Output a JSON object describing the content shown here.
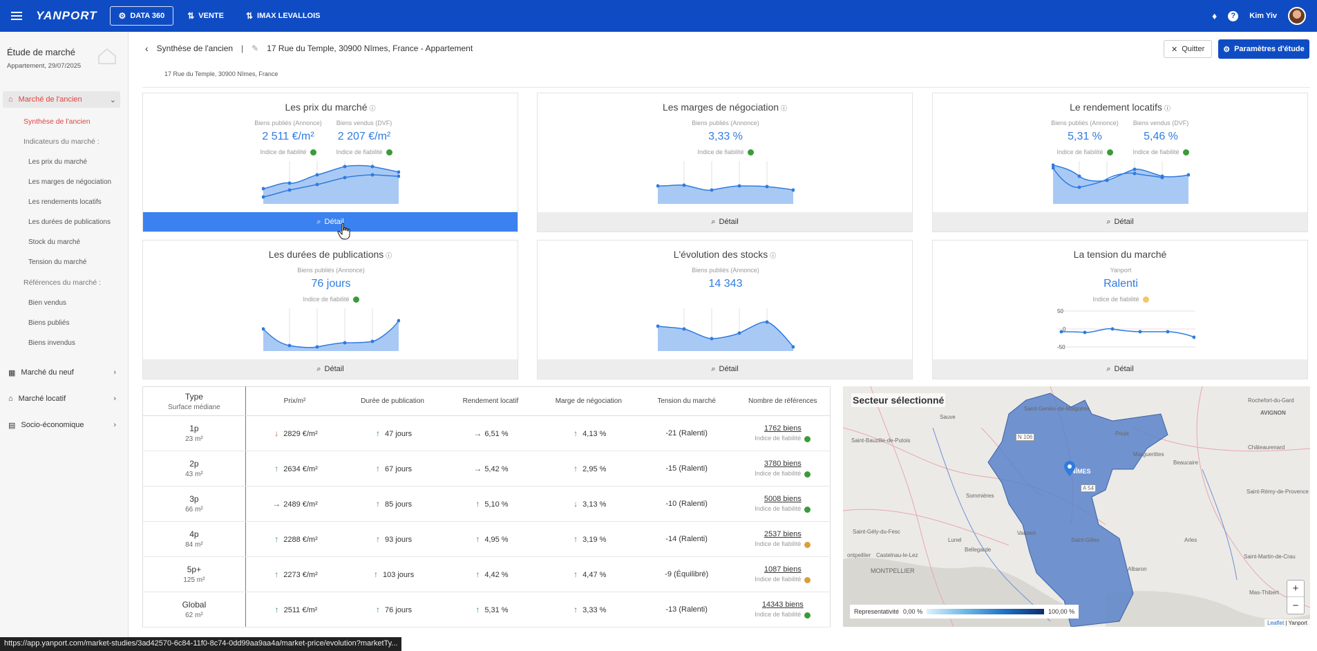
{
  "topbar": {
    "logo": "YANPORT",
    "nav": [
      {
        "label": "DATA 360",
        "icon": "data-icon"
      },
      {
        "label": "VENTE",
        "icon": "sale-icon"
      },
      {
        "label": "IMAX LEVALLOIS",
        "icon": "agency-icon"
      }
    ],
    "username": "Kim Yiv"
  },
  "sidebar": {
    "title": "Étude de marché",
    "subtitle": "Appartement, 29/07/2025",
    "sections": [
      {
        "label": "Marché de l'ancien"
      },
      {
        "label": "Marché du neuf"
      },
      {
        "label": "Marché locatif"
      },
      {
        "label": "Socio-économique"
      }
    ],
    "subitems": {
      "synthese": "Synthèse de l'ancien",
      "indicateurs": "Indicateurs du marché :",
      "prix": "Les prix du marché",
      "marges": "Les marges de négociation",
      "rendements": "Les rendements locatifs",
      "durees": "Les durées de publications",
      "stock": "Stock du marché",
      "tension": "Tension du marché",
      "references": "Références du marché :",
      "vendus": "Bien vendus",
      "publies": "Biens publiés",
      "invendus": "Biens invendus"
    }
  },
  "header": {
    "breadcrumb": "Synthèse de l'ancien",
    "separator": "|",
    "address": "17 Rue du Temple, 30900 Nîmes, France - Appartement",
    "address_sub": "17 Rue du Temple, 30900 Nîmes, France",
    "quit_label": "Quitter",
    "params_label": "Paramètres d'étude"
  },
  "cards": {
    "prix": {
      "title": "Les prix du marché",
      "m1_label": "Biens publiés (Annonce)",
      "m1_value": "2 511 €/m²",
      "m2_label": "Biens vendus (DVF)",
      "m2_value": "2 207 €/m²",
      "reliability": "Indice de fiabilité",
      "detail": "Détail"
    },
    "marges": {
      "title": "Les marges de négociation",
      "m1_label": "Biens publiés (Annonce)",
      "m1_value": "3,33 %",
      "reliability": "Indice de fiabilité",
      "detail": "Détail"
    },
    "rendement": {
      "title": "Le rendement locatifs",
      "m1_label": "Biens publiés (Annonce)",
      "m1_value": "5,31 %",
      "m2_label": "Biens vendus (DVF)",
      "m2_value": "5,46 %",
      "reliability": "Indice de fiabilité",
      "detail": "Détail"
    },
    "durees": {
      "title": "Les durées de publications",
      "m1_label": "Biens publiés (Annonce)",
      "m1_value": "76 jours",
      "reliability": "Indice de fiabilité",
      "detail": "Détail"
    },
    "stocks": {
      "title": "L'évolution des stocks",
      "m1_label": "Biens publiés (Annonce)",
      "m1_value": "14 343",
      "detail": "Détail"
    },
    "tension": {
      "title": "La tension du marché",
      "m1_label": "Yanport",
      "m1_value": "Ralenti",
      "reliability": "Indice de fiabilité",
      "detail": "Détail",
      "axis": [
        "50",
        "0",
        "-50"
      ]
    }
  },
  "table": {
    "headers": {
      "type": "Type",
      "type_sub": "Surface médiane",
      "prix": "Prix/m²",
      "duree": "Durée de publication",
      "rendement": "Rendement locatif",
      "marge": "Marge de négociation",
      "tension": "Tension du marché",
      "refs": "Nombre de références"
    },
    "reliability": "Indice de fiabilité",
    "rows": [
      {
        "type": "1p",
        "surface": "23 m²",
        "prix": "2829 €/m²",
        "prix_trend": "down",
        "duree": "47 jours",
        "duree_trend": "up",
        "rendement": "6,51 %",
        "rendement_trend": "flat",
        "marge": "4,13 %",
        "marge_trend": "up",
        "tension": "-21 (Ralenti)",
        "refs": "1762 biens",
        "dot": "green"
      },
      {
        "type": "2p",
        "surface": "43 m²",
        "prix": "2634 €/m²",
        "prix_trend": "up",
        "duree": "67 jours",
        "duree_trend": "up",
        "rendement": "5,42 %",
        "rendement_trend": "flat",
        "marge": "2,95 %",
        "marge_trend": "up",
        "tension": "-15 (Ralenti)",
        "refs": "3780 biens",
        "dot": "green"
      },
      {
        "type": "3p",
        "surface": "66 m²",
        "prix": "2489 €/m²",
        "prix_trend": "flat",
        "duree": "85 jours",
        "duree_trend": "up",
        "rendement": "5,10 %",
        "rendement_trend": "up",
        "marge": "3,13 %",
        "marge_trend": "down",
        "tension": "-10 (Ralenti)",
        "refs": "5008 biens",
        "dot": "green"
      },
      {
        "type": "4p",
        "surface": "84 m²",
        "prix": "2288 €/m²",
        "prix_trend": "up",
        "duree": "93 jours",
        "duree_trend": "up",
        "rendement": "4,95 %",
        "rendement_trend": "up",
        "marge": "3,19 %",
        "marge_trend": "up",
        "tension": "-14 (Ralenti)",
        "refs": "2537 biens",
        "dot": "amber"
      },
      {
        "type": "5p+",
        "surface": "125 m²",
        "prix": "2273 €/m²",
        "prix_trend": "up",
        "duree": "103 jours",
        "duree_trend": "up",
        "rendement": "4,42 %",
        "rendement_trend": "up",
        "marge": "4,47 %",
        "marge_trend": "up",
        "tension": "-9 (Équilibré)",
        "refs": "1087 biens",
        "dot": "amber"
      },
      {
        "type": "Global",
        "surface": "62 m²",
        "prix": "2511 €/m²",
        "prix_trend": "up",
        "duree": "76 jours",
        "duree_trend": "up",
        "rendement": "5,31 %",
        "rendement_trend": "up",
        "marge": "3,33 %",
        "marge_trend": "up",
        "tension": "-13 (Ralenti)",
        "refs": "14343 biens",
        "dot": "green"
      }
    ]
  },
  "map": {
    "title": "Secteur sélectionné",
    "legend_label": "Representativité",
    "legend_min": "0,00 %",
    "legend_max": "100,00 %",
    "attribution_link": "Leaflet",
    "attribution_rest": " | Yanport",
    "places": [
      "Saint-Geniès-de-Malgoirès",
      "Sauve",
      "Saint-Bauzille-de-Putois",
      "Rochefort-du-Gard",
      "AVIGNON",
      "Châteaurenard",
      "NÎMES",
      "Beaucaire",
      "Saint-Rémy-de-Provence",
      "Sommières",
      "Saint-Gély-du-Fesc",
      "Lunel",
      "Vauvert",
      "Arles",
      "MONTPELLIER",
      "Castelnau-le-Lez",
      "Saint-Martin-de-Crau",
      "Albaron",
      "Mas-Thibert",
      "Bellegarde",
      "Saint-Gilles",
      "N 106",
      "A 54",
      "Poulx",
      "Marguerittes",
      "ontpeillier"
    ]
  },
  "statusbar": "https://app.yanport.com/market-studies/3ad42570-6c84-11f0-8c74-0dd99aa9aa4a/market-price/evolution?marketTy...",
  "colors": {
    "brand": "#0f4cc4",
    "accent_red": "#e0423f",
    "chart_blue": "#2f7be0",
    "reliability_green": "#3a9b3a"
  }
}
